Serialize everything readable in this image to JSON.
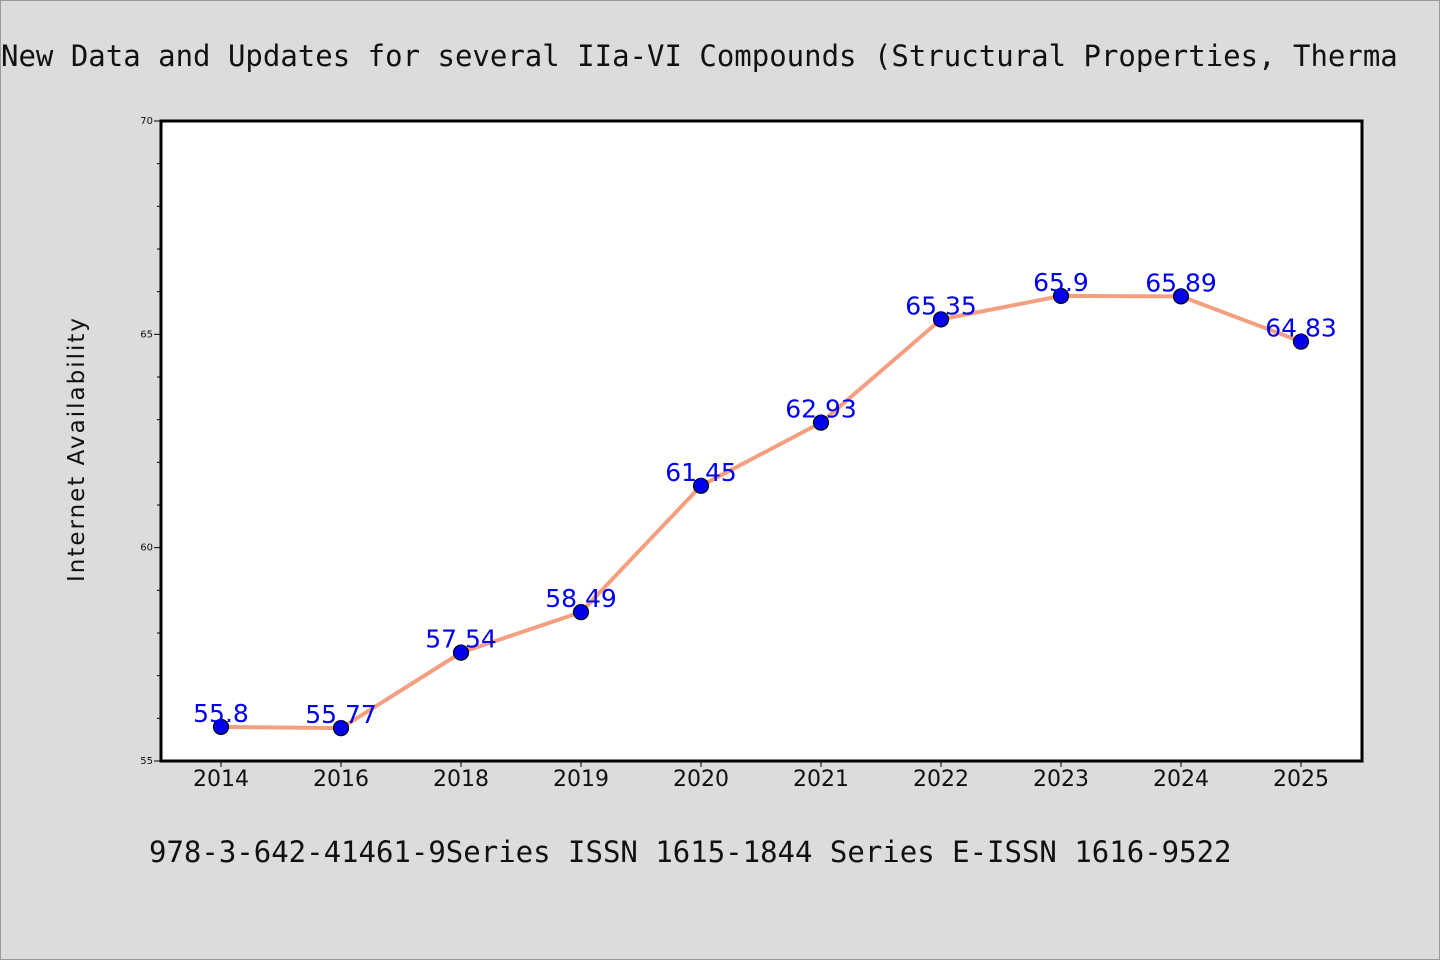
{
  "page": {
    "title": "New Data and Updates for several IIa-VI Compounds (Structural Properties, Therma",
    "footer": "978-3-642-41461-9Series ISSN 1615-1844 Series E-ISSN 1616-9522"
  },
  "chart_data": {
    "type": "line",
    "title": "New Data and Updates for several IIa-VI Compounds (Structural Properties, Therma",
    "xlabel": "",
    "ylabel": "Internet Availability",
    "categories": [
      "2014",
      "2016",
      "2018",
      "2019",
      "2020",
      "2021",
      "2022",
      "2023",
      "2024",
      "2025"
    ],
    "series": [
      {
        "values": [
          55.8,
          55.77,
          57.54,
          58.49,
          61.45,
          62.93,
          65.35,
          65.9,
          65.89,
          64.83
        ],
        "labels": [
          "55.8",
          "55.77",
          "57.54",
          "58.49",
          "61.45",
          "62.93",
          "65.35",
          "65.9",
          "65.89",
          "64.83"
        ]
      }
    ],
    "ylim": [
      55,
      70
    ],
    "yticks": [
      55,
      60,
      65,
      70
    ],
    "grid": false,
    "colors": {
      "line": "#f4a080",
      "marker": "#0000ee",
      "label": "#0000ee",
      "axis": "#000000",
      "plot_bg": "#ffffff",
      "page_bg": "#dcdcdc"
    }
  }
}
